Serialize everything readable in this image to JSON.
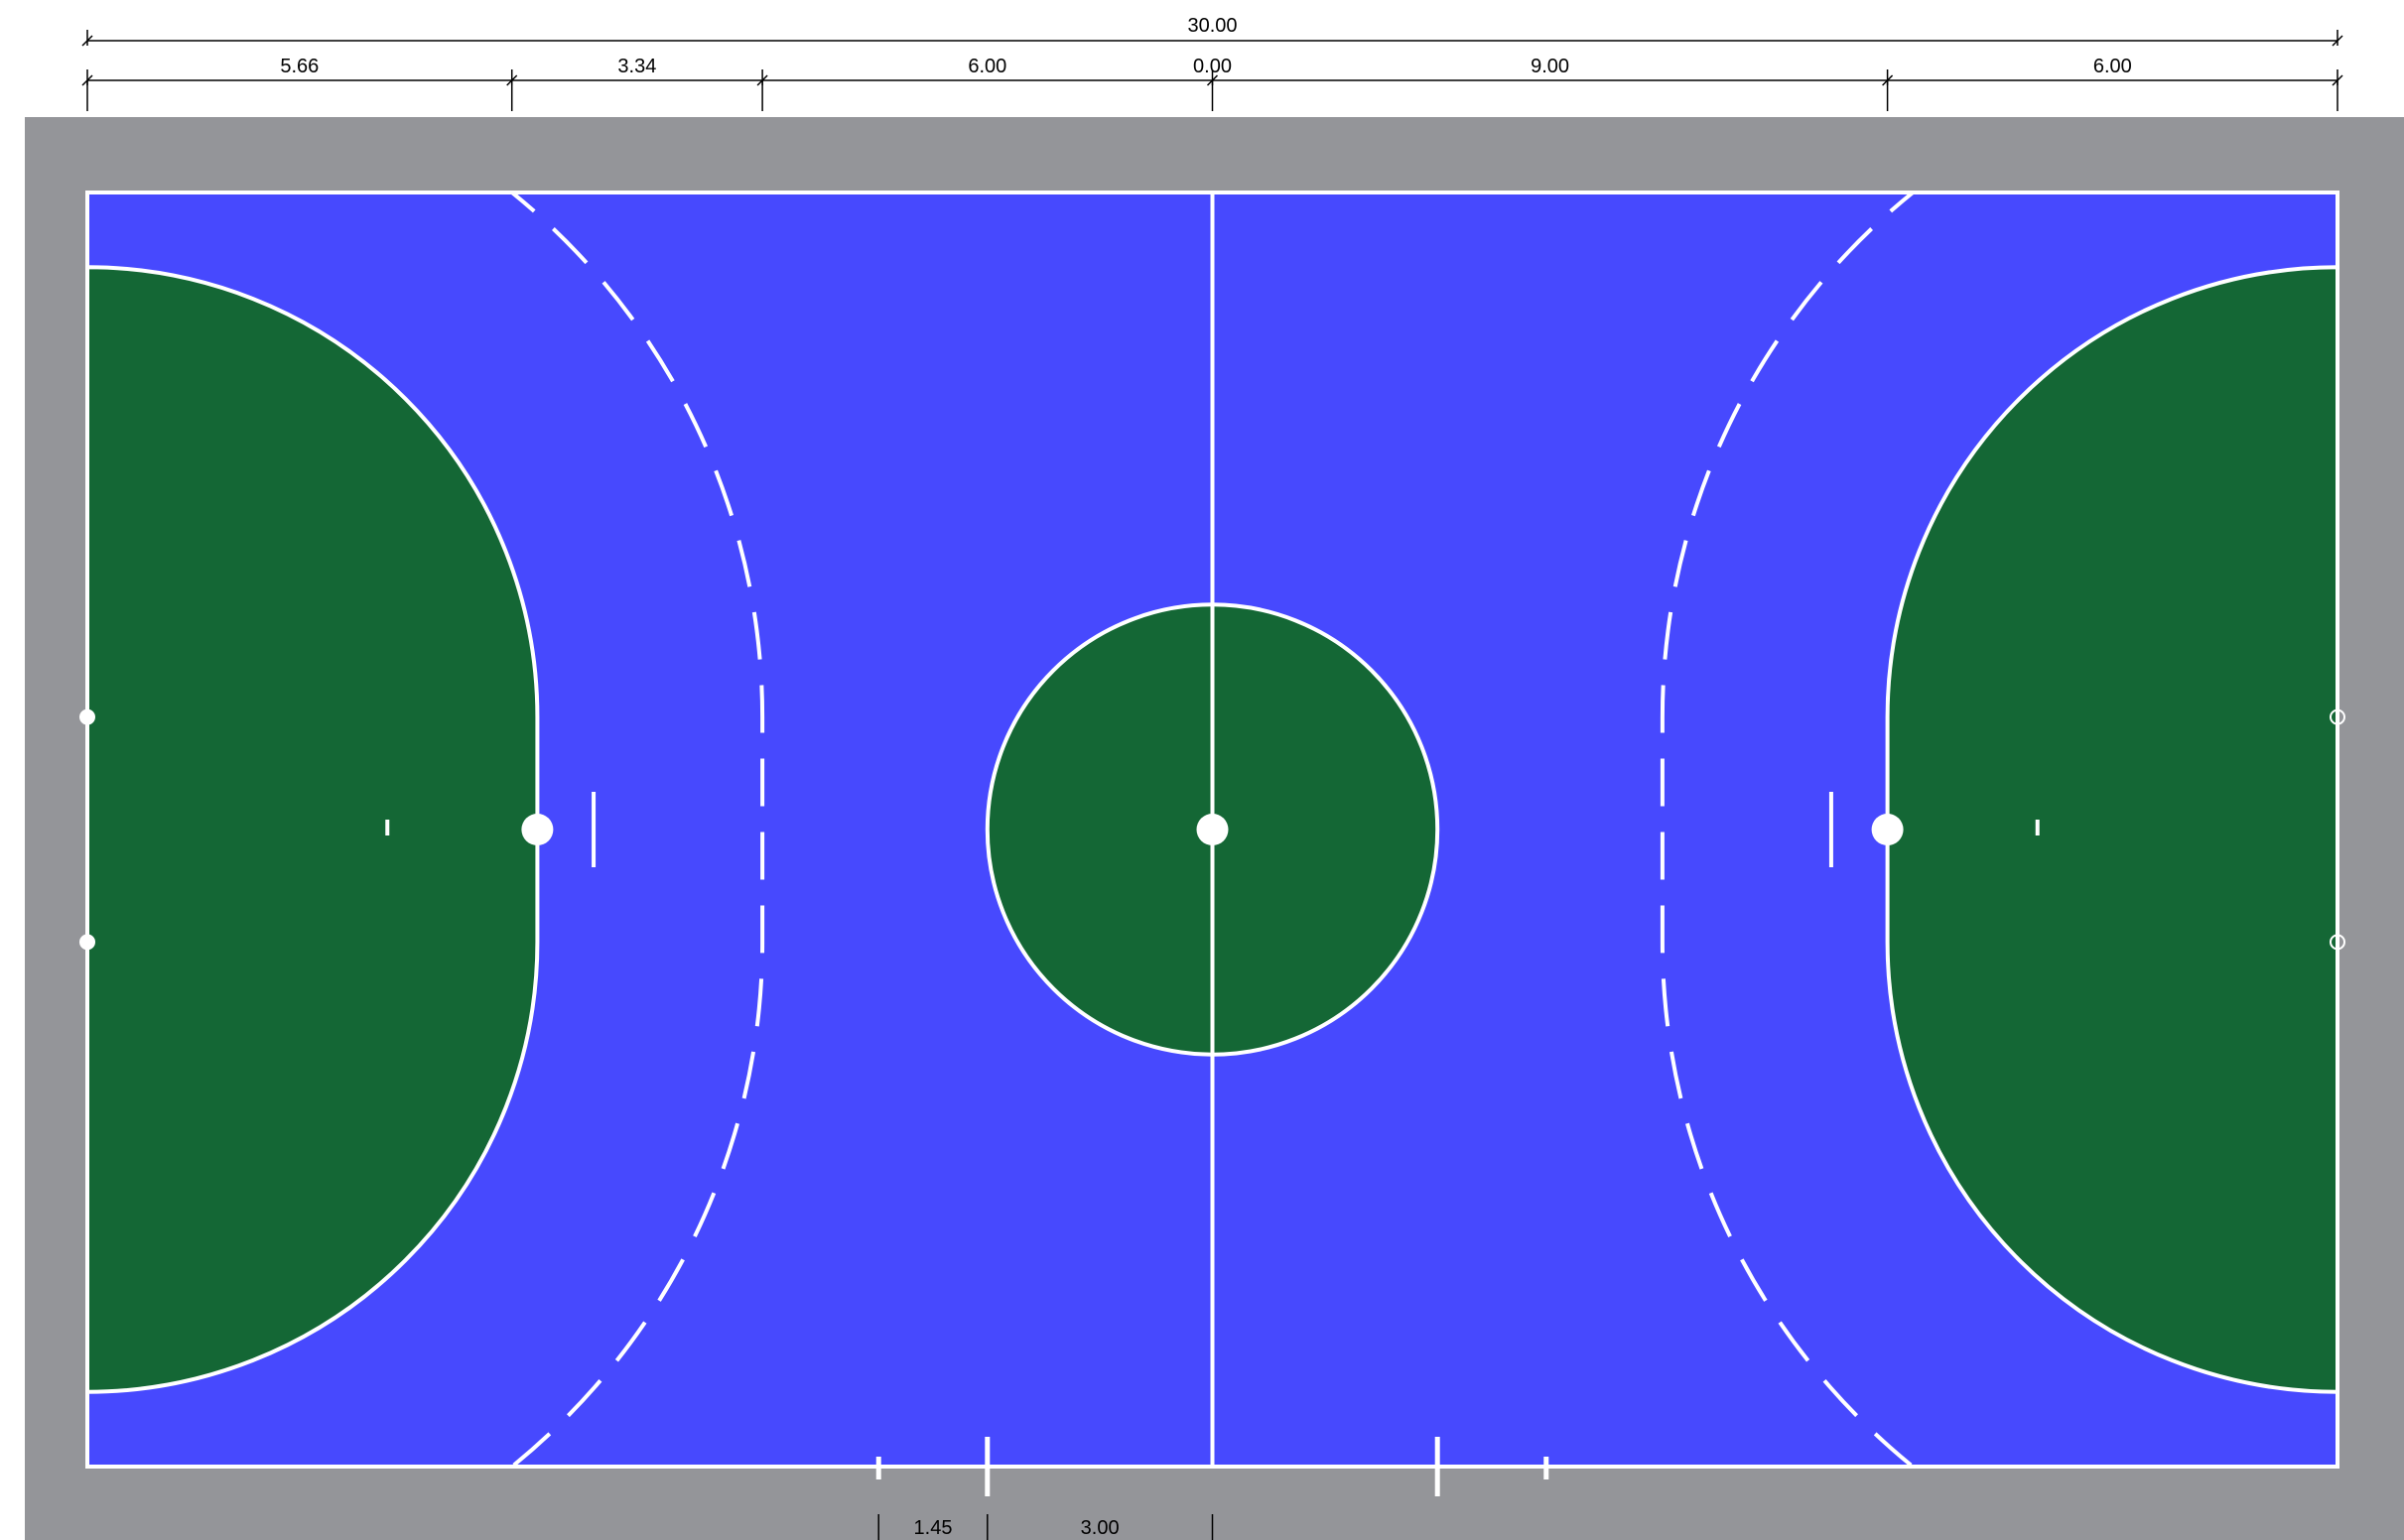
{
  "diagram": {
    "colors": {
      "surround": "#949599",
      "court": "#4749fe",
      "zone": "#146735",
      "line": "#ffffff",
      "dimension": "#000000"
    },
    "dimensions": {
      "overall": {
        "label": "30.00",
        "from": 0,
        "to": 30
      },
      "top_chain": [
        {
          "label": "5.66",
          "from": 0,
          "to": 5.66
        },
        {
          "label": "3.34",
          "from": 5.66,
          "to": 9
        },
        {
          "label": "6.00",
          "from": 9,
          "to": 15
        },
        {
          "label": "0.00",
          "from": 15,
          "to": 15
        },
        {
          "label": "9.00",
          "from": 15,
          "to": 24
        },
        {
          "label": "6.00",
          "from": 24,
          "to": 30
        }
      ],
      "bottom_chain": [
        {
          "label": "1.45",
          "from": 10.55,
          "to": 12
        },
        {
          "label": "3.00",
          "from": 12,
          "to": 15
        }
      ]
    }
  }
}
